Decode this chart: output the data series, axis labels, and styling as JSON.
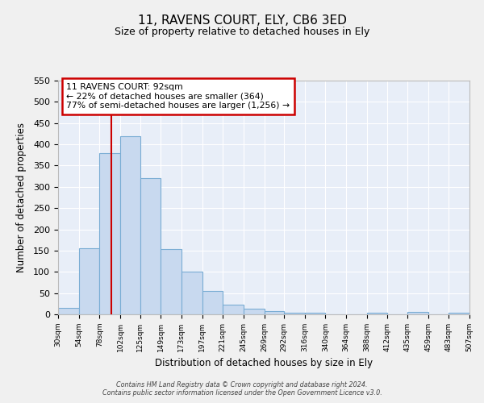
{
  "title": "11, RAVENS COURT, ELY, CB6 3ED",
  "subtitle": "Size of property relative to detached houses in Ely",
  "xlabel": "Distribution of detached houses by size in Ely",
  "ylabel": "Number of detached properties",
  "bar_color": "#c8d9ef",
  "bar_edge_color": "#7aadd4",
  "background_color": "#e8eef8",
  "grid_color": "#ffffff",
  "annotation_line_color": "#cc0000",
  "annotation_box_edge_color": "#cc0000",
  "annotation_line1": "11 RAVENS COURT: 92sqm",
  "annotation_line2": "← 22% of detached houses are smaller (364)",
  "annotation_line3": "77% of semi-detached houses are larger (1,256) →",
  "property_size": 92,
  "bin_edges": [
    30,
    54,
    78,
    102,
    125,
    149,
    173,
    197,
    221,
    245,
    269,
    292,
    316,
    340,
    364,
    388,
    412,
    435,
    459,
    483,
    507
  ],
  "bin_heights": [
    15,
    155,
    380,
    420,
    320,
    153,
    100,
    55,
    22,
    13,
    8,
    4,
    4,
    0,
    0,
    3,
    0,
    5,
    0,
    3
  ],
  "ylim": [
    0,
    550
  ],
  "yticks": [
    0,
    50,
    100,
    150,
    200,
    250,
    300,
    350,
    400,
    450,
    500,
    550
  ],
  "fig_bg": "#f0f0f0",
  "footer_line1": "Contains HM Land Registry data © Crown copyright and database right 2024.",
  "footer_line2": "Contains public sector information licensed under the Open Government Licence v3.0."
}
